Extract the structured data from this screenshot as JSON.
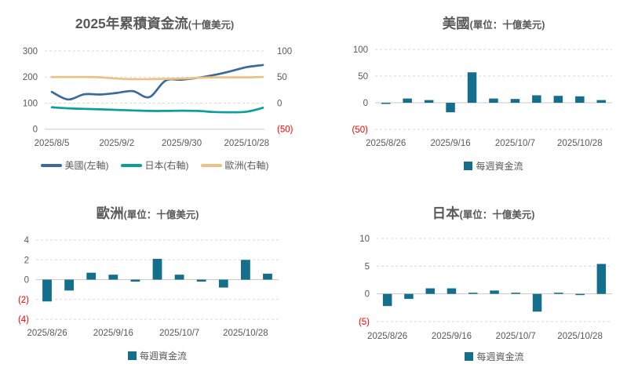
{
  "styles": {
    "label_color": "#595959",
    "title_color": "#595959",
    "negative_label_color": "#FF0000",
    "grid_color": "#DADADA",
    "axis_line_color": "#C9C9C9",
    "bar_color": "#136F8C",
    "us_line_color": "#3A6B9C",
    "japan_line_color": "#0C9E98",
    "europe_line_color": "#EFC083"
  },
  "chart_data": [
    {
      "type": "line",
      "title": "2025年累積資金流",
      "title_suffix": "(十億美元)",
      "num_points": 14,
      "x_tick_labels": [
        "2025/8/5",
        "2025/9/2",
        "2025/9/30",
        "2025/10/28"
      ],
      "x_tick_indices": [
        0,
        4,
        8,
        12
      ],
      "axes": {
        "left": {
          "min": 0,
          "max": 300,
          "ticks": [
            300,
            200,
            100,
            0
          ]
        },
        "right": {
          "min": -50,
          "max": 100,
          "ticks": [
            100,
            50,
            0,
            -50
          ]
        }
      },
      "grid": true,
      "legend_position": "bottom",
      "series": [
        {
          "name": "美國(左軸)",
          "axis": "left",
          "color": "#3A6B9C",
          "values": [
            143,
            114,
            134,
            133,
            139,
            146,
            123,
            186,
            190,
            197,
            208,
            222,
            238,
            246
          ]
        },
        {
          "name": "日本(右軸)",
          "axis": "right",
          "color": "#0C9E98",
          "values": [
            -8,
            -10,
            -11,
            -12,
            -13,
            -14,
            -15,
            -15,
            -14.5,
            -15,
            -17,
            -17.5,
            -16.5,
            -9
          ]
        },
        {
          "name": "歐洲(右軸)",
          "axis": "right",
          "color": "#EFC083",
          "values": [
            50,
            50,
            50,
            49.5,
            47,
            46,
            46,
            46.5,
            47,
            48.5,
            49.5,
            49.5,
            49.5,
            50
          ]
        }
      ]
    },
    {
      "type": "bar",
      "title": "美國",
      "title_suffix": "(單位：十億美元)",
      "num_points": 11,
      "x_tick_labels": [
        "2025/8/26",
        "2025/9/16",
        "2025/10/7",
        "2025/10/28"
      ],
      "x_tick_indices": [
        0,
        3,
        6,
        9
      ],
      "ylim": [
        -50,
        100
      ],
      "yticks": [
        100,
        50,
        0,
        -50
      ],
      "grid": true,
      "legend": "每週資金流",
      "bar_color": "#136F8C",
      "values": [
        -2,
        8,
        5,
        -18,
        57,
        8,
        7,
        14,
        13,
        12,
        5
      ]
    },
    {
      "type": "bar",
      "title": "歐洲",
      "title_suffix": "(單位：十億美元)",
      "num_points": 11,
      "x_tick_labels": [
        "2025/8/26",
        "2025/9/16",
        "2025/10/7",
        "2025/10/28"
      ],
      "x_tick_indices": [
        0,
        3,
        6,
        9
      ],
      "ylim": [
        -4,
        4
      ],
      "yticks": [
        4,
        2,
        0,
        -2,
        -4
      ],
      "grid": true,
      "legend": "每週資金流",
      "bar_color": "#136F8C",
      "values": [
        -2.2,
        -1.1,
        0.7,
        0.5,
        -0.2,
        2.1,
        0.5,
        -0.2,
        -0.8,
        2.0,
        0.6
      ]
    },
    {
      "type": "bar",
      "title": "日本",
      "title_suffix": "(單位：十億美元)",
      "num_points": 11,
      "x_tick_labels": [
        "2025/8/26",
        "2025/9/16",
        "2025/10/7",
        "2025/10/28"
      ],
      "x_tick_indices": [
        0,
        3,
        6,
        9
      ],
      "ylim": [
        -5,
        10
      ],
      "yticks": [
        10,
        5,
        0,
        -5
      ],
      "grid": true,
      "legend": "每週資金流",
      "bar_color": "#136F8C",
      "values": [
        -2.2,
        -0.9,
        1.0,
        1.0,
        0.2,
        0.6,
        0.2,
        -3.2,
        0.2,
        -0.2,
        5.4
      ]
    }
  ]
}
